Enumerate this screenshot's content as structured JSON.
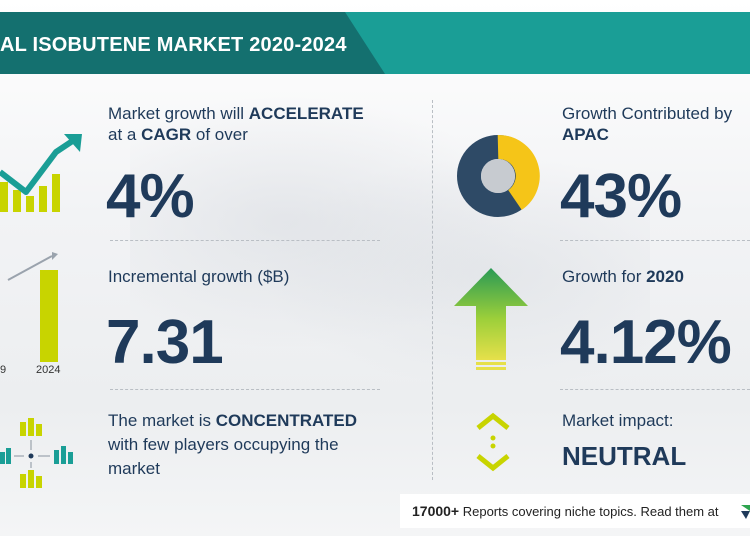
{
  "header": {
    "title": "AL ISOBUTENE MARKET 2020-2024"
  },
  "left": {
    "growth": {
      "line1_pre": "Market growth will ",
      "line1_strong": "ACCELERATE",
      "line2_pre": "at a ",
      "line2_strong": "CAGR",
      "line2_post": " of over",
      "value": "4%"
    },
    "incremental": {
      "label": "Incremental growth ($B)",
      "value": "7.31",
      "axis_left": "9",
      "axis_right": "2024"
    },
    "concentration": {
      "line1_pre": "The market is ",
      "line1_strong": "CONCENTRATED",
      "line2": "with few players occupying the",
      "line3": "market"
    }
  },
  "right": {
    "apac": {
      "label": "Growth Contributed by",
      "region": "APAC",
      "value": "43%"
    },
    "year_growth": {
      "label": "Growth for ",
      "year": "2020",
      "value": "4.12%"
    },
    "impact": {
      "label": "Market impact:",
      "value": "NEUTRAL"
    }
  },
  "footer": {
    "count": "17000+",
    "text": " Reports covering niche topics. Read them at"
  },
  "colors": {
    "navy": "#1f3a5a",
    "teal": "#1a9e96",
    "dark_teal": "#14706f",
    "yellow": "#f5c518",
    "lime": "#c8d400",
    "green": "#2ea44f"
  },
  "icons": [
    "chart-trend-icon",
    "bar-growth-icon",
    "network-icon",
    "donut-chart-icon",
    "up-arrow-icon",
    "neutral-arrows-icon"
  ]
}
